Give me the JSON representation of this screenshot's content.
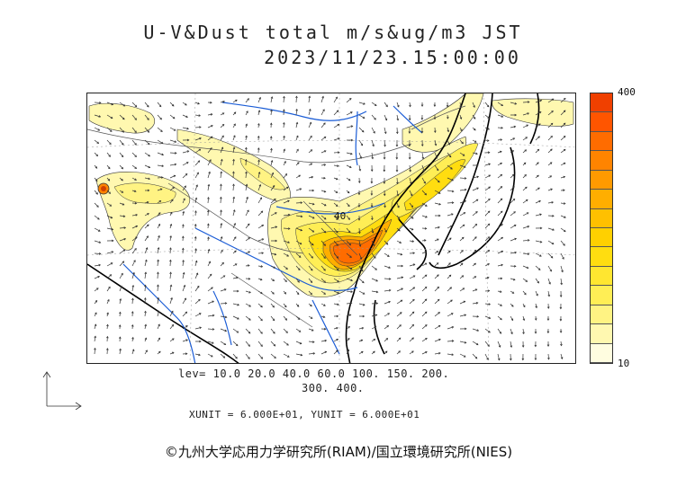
{
  "title": {
    "line1": "U-V&Dust total m/s&ug/m3 JST",
    "line2": "2023/11/23.15:00:00"
  },
  "colorbar": {
    "max_label": "400",
    "min_label": "10",
    "colors": [
      "#fffde0",
      "#fff8b0",
      "#fff383",
      "#ffee55",
      "#ffe630",
      "#ffdd10",
      "#ffd000",
      "#ffc000",
      "#ffae00",
      "#ff9a00",
      "#ff8400",
      "#ff6c00",
      "#ff5500",
      "#f04000"
    ]
  },
  "contour_legend": {
    "line1": "lev= 10.0 20.0 40.0 60.0 100. 150. 200.",
    "line2": "300. 400."
  },
  "map_label": "40",
  "units": "XUNIT = 6.000E+01, YUNIT = 6.000E+01",
  "copyright": "©九州大学応用力学研究所(RIAM)/国立環境研究所(NIES)"
}
